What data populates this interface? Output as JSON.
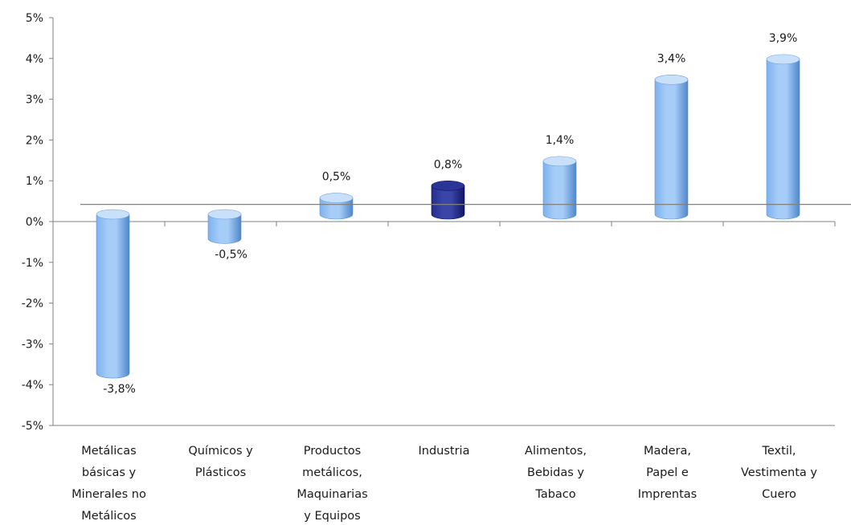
{
  "chart_data": {
    "type": "bar",
    "categories": [
      [
        "Metálicas",
        "básicas y",
        "Minerales no",
        "Metálicos"
      ],
      [
        "Químicos y",
        "Plásticos"
      ],
      [
        "Productos",
        "metálicos,",
        "Maquinarias",
        "y Equipos"
      ],
      [
        "Industria"
      ],
      [
        "Alimentos,",
        "Bebidas y",
        "Tabaco"
      ],
      [
        "Madera,",
        "Papel e",
        "Imprentas"
      ],
      [
        "Textil,",
        "Vestimenta y",
        "Cuero"
      ]
    ],
    "values": [
      -3.8,
      -0.5,
      0.5,
      0.8,
      1.4,
      3.4,
      3.9
    ],
    "value_labels": [
      "-3,8%",
      "-0,5%",
      "0,5%",
      "0,8%",
      "1,4%",
      "3,4%",
      "3,9%"
    ],
    "highlight_index": 3,
    "ylim": [
      -5,
      5
    ],
    "yticks": [
      5,
      4,
      3,
      2,
      1,
      0,
      -1,
      -2,
      -3,
      -4,
      -5
    ],
    "ytick_labels": [
      "5%",
      "4%",
      "3%",
      "2%",
      "1%",
      "0%",
      "-1%",
      "-2%",
      "-3%",
      "-4%",
      "-5%"
    ],
    "reference_line_value": 0.5,
    "bar_style": "3d-cylinder",
    "title": "",
    "xlabel": "",
    "ylabel": "",
    "grid": false,
    "legend": "none",
    "colors": {
      "bar_light": "#a6cdf8",
      "bar_mid": "#7eb2ec",
      "bar_dark": "#4f86c9",
      "bar_top": "#c9e0fb",
      "highlight_light": "#3a45a8",
      "highlight_mid": "#242e8f",
      "highlight_dark": "#101565",
      "highlight_top": "#2a3597",
      "axis": "#808080",
      "text": "#1a1a1a"
    }
  }
}
